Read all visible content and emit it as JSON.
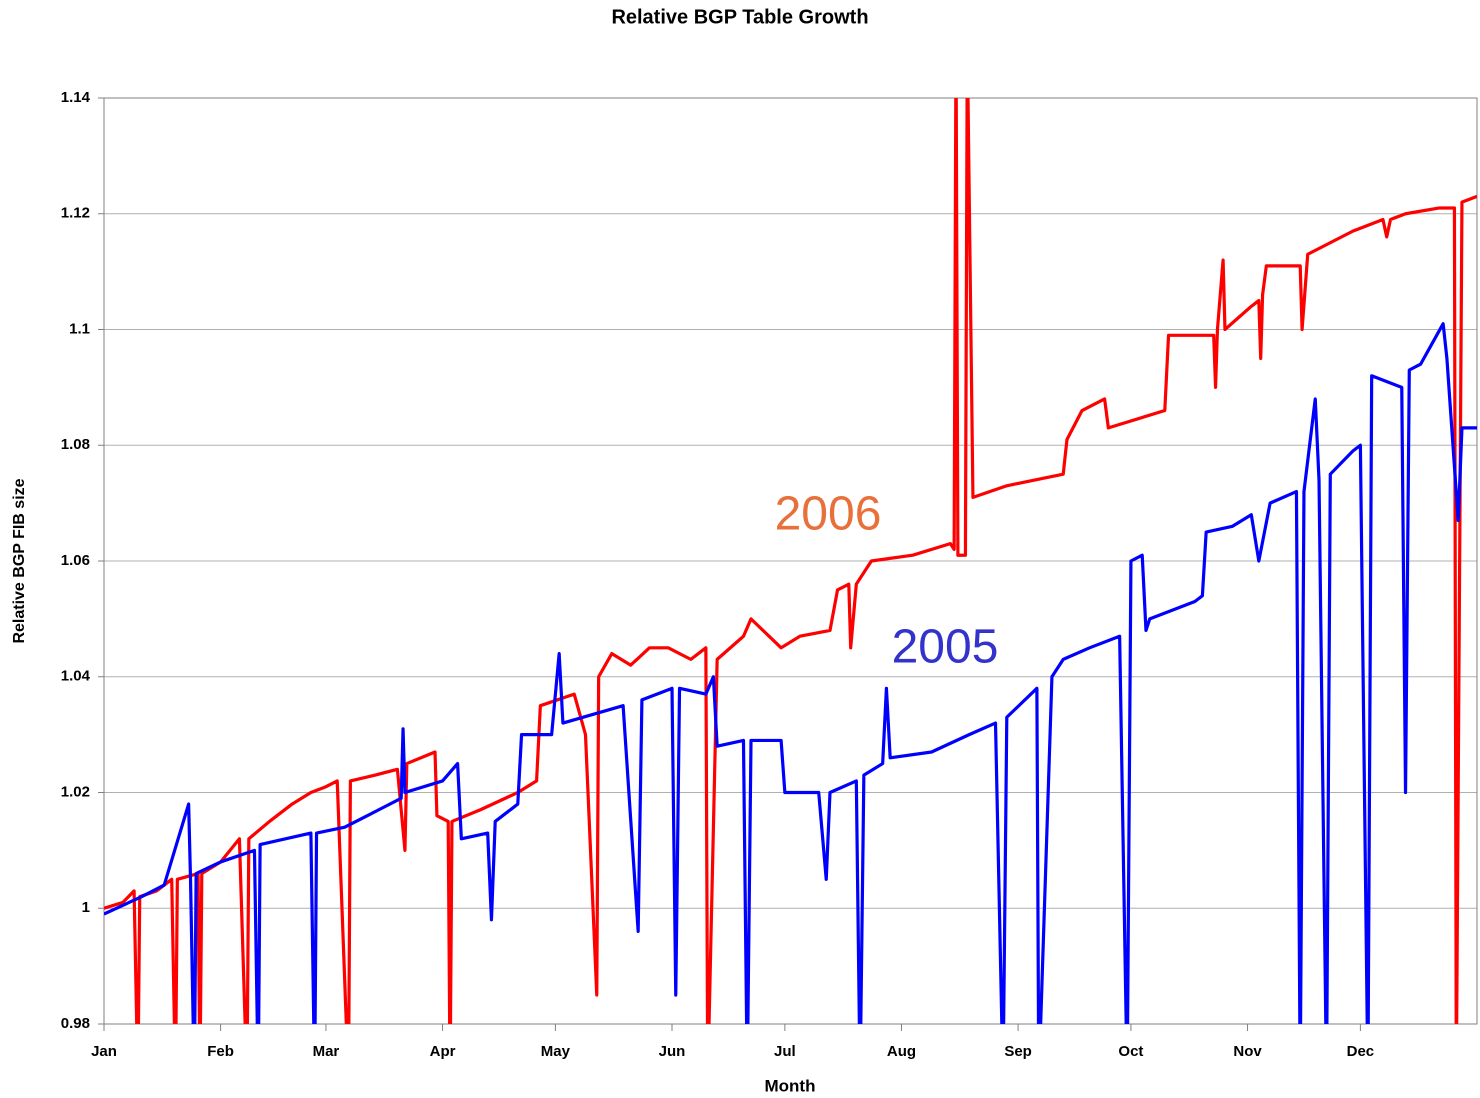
{
  "chart_data": {
    "type": "line",
    "title": "Relative BGP Table Growth",
    "xlabel": "Month",
    "ylabel": "Relative BGP FIB size",
    "annotations": [
      {
        "text": "2006",
        "color": "#e8703a"
      },
      {
        "text": "2005",
        "color": "#3333cc"
      }
    ],
    "xlim": [
      0,
      365
    ],
    "xticks": [
      {
        "value": 0,
        "label": "Jan"
      },
      {
        "value": 31,
        "label": "Feb"
      },
      {
        "value": 59,
        "label": "Mar"
      },
      {
        "value": 90,
        "label": "Apr"
      },
      {
        "value": 120,
        "label": "May"
      },
      {
        "value": 151,
        "label": "Jun"
      },
      {
        "value": 181,
        "label": "Jul"
      },
      {
        "value": 212,
        "label": "Aug"
      },
      {
        "value": 243,
        "label": "Sep"
      },
      {
        "value": 273,
        "label": "Oct"
      },
      {
        "value": 304,
        "label": "Nov"
      },
      {
        "value": 334,
        "label": "Dec"
      }
    ],
    "ylim": [
      0.98,
      1.14
    ],
    "yticks": [
      0.98,
      1,
      1.02,
      1.04,
      1.06,
      1.08,
      1.1,
      1.12,
      1.14
    ],
    "grid": true,
    "series": [
      {
        "name": "2006",
        "color": "#ff0000",
        "x": [
          0,
          5,
          8,
          9,
          9.5,
          14,
          18,
          19,
          19.5,
          25,
          25.5,
          26,
          31,
          36,
          38,
          38.5,
          44,
          50,
          55,
          59,
          62,
          65,
          65.5,
          72,
          78,
          80,
          80.5,
          88,
          88.5,
          91.5,
          92,
          92.5,
          100,
          110,
          115,
          116,
          125,
          128,
          131,
          131.5,
          135,
          140,
          145,
          150,
          156,
          160,
          160.5,
          163,
          170,
          172,
          180,
          185,
          193,
          195,
          198,
          198.5,
          200,
          204,
          215,
          225,
          226,
          226.5,
          227,
          229,
          229.5,
          231,
          240,
          255,
          256,
          260,
          266,
          267,
          282,
          283,
          295,
          295.5,
          296,
          297.5,
          298,
          305,
          307,
          307.5,
          308,
          309,
          318,
          318.5,
          320,
          332,
          340,
          341,
          342,
          346,
          355,
          359,
          359.5,
          361,
          365
        ],
        "values": [
          1.0,
          1.001,
          1.003,
          0.97,
          1.002,
          1.003,
          1.005,
          0.97,
          1.005,
          1.006,
          0.97,
          1.006,
          1.008,
          1.012,
          0.97,
          1.012,
          1.015,
          1.018,
          1.02,
          1.021,
          1.022,
          0.97,
          1.022,
          1.023,
          1.024,
          1.01,
          1.025,
          1.027,
          1.016,
          1.015,
          0.97,
          1.015,
          1.017,
          1.02,
          1.022,
          1.035,
          1.037,
          1.03,
          0.985,
          1.04,
          1.044,
          1.042,
          1.045,
          1.045,
          1.043,
          1.045,
          0.97,
          1.043,
          1.047,
          1.05,
          1.045,
          1.047,
          1.048,
          1.055,
          1.056,
          1.045,
          1.056,
          1.06,
          1.061,
          1.063,
          1.062,
          1.15,
          1.061,
          1.061,
          1.15,
          1.071,
          1.073,
          1.075,
          1.081,
          1.086,
          1.088,
          1.083,
          1.086,
          1.099,
          1.099,
          1.09,
          1.1,
          1.112,
          1.1,
          1.104,
          1.105,
          1.095,
          1.106,
          1.111,
          1.111,
          1.1,
          1.113,
          1.117,
          1.119,
          1.116,
          1.119,
          1.12,
          1.121,
          1.121,
          0.97,
          1.122,
          1.123
        ]
      },
      {
        "name": "2005",
        "color": "#0000ff",
        "x": [
          0,
          10,
          16,
          22.5,
          23,
          24,
          24.5,
          31,
          40,
          41,
          41.5,
          55,
          56,
          56.5,
          64,
          70,
          79,
          79.5,
          80,
          90,
          94,
          95,
          102,
          103,
          104,
          110,
          111,
          119,
          121,
          122,
          138,
          142,
          143,
          151,
          152,
          153,
          160,
          162,
          163,
          170,
          171,
          172,
          180,
          181,
          190,
          192,
          193,
          200,
          201,
          202,
          207,
          208,
          209,
          220,
          230,
          237,
          239,
          240,
          248,
          248.5,
          252,
          255,
          262,
          270,
          272,
          273,
          276,
          277,
          278,
          290,
          292,
          293,
          300,
          305,
          307,
          310,
          317,
          318,
          319,
          322,
          323,
          325,
          326,
          332,
          334,
          336,
          337,
          345,
          346,
          347,
          350,
          356,
          357,
          360,
          361,
          365
        ],
        "values": [
          0.999,
          1.002,
          1.004,
          1.018,
          1.005,
          0.97,
          1.006,
          1.008,
          1.01,
          0.97,
          1.011,
          1.013,
          0.97,
          1.013,
          1.014,
          1.016,
          1.019,
          1.031,
          1.02,
          1.022,
          1.025,
          1.012,
          1.013,
          0.998,
          1.015,
          1.018,
          1.03,
          1.03,
          1.044,
          1.032,
          1.035,
          0.996,
          1.036,
          1.038,
          0.985,
          1.038,
          1.037,
          1.04,
          1.028,
          1.029,
          0.97,
          1.029,
          1.029,
          1.02,
          1.02,
          1.005,
          1.02,
          1.022,
          0.97,
          1.023,
          1.025,
          1.038,
          1.026,
          1.027,
          1.03,
          1.032,
          0.97,
          1.033,
          1.038,
          0.97,
          1.04,
          1.043,
          1.045,
          1.047,
          0.97,
          1.06,
          1.061,
          1.048,
          1.05,
          1.053,
          1.054,
          1.065,
          1.066,
          1.068,
          1.06,
          1.07,
          1.072,
          0.97,
          1.072,
          1.088,
          1.074,
          0.97,
          1.075,
          1.079,
          1.08,
          0.97,
          1.092,
          1.09,
          1.02,
          1.093,
          1.094,
          1.101,
          1.095,
          1.067,
          1.083,
          1.083
        ]
      }
    ]
  }
}
